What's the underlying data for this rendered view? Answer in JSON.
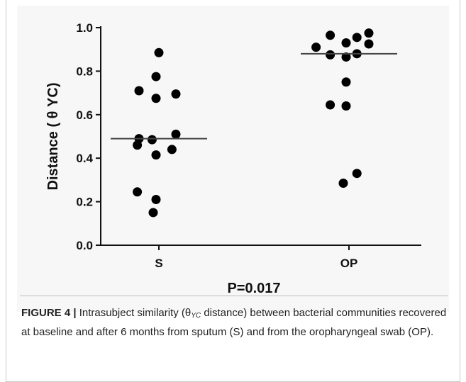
{
  "chart_data": {
    "type": "scatter",
    "categories": [
      "S",
      "OP"
    ],
    "ylabel": "Distance ( θ YC)",
    "ylim": [
      0.0,
      1.0
    ],
    "yticks": [
      0.0,
      0.2,
      0.4,
      0.6,
      0.8,
      1.0
    ],
    "ytick_labels": [
      "0.0",
      "0.2",
      "0.4",
      "0.6",
      "0.8",
      "1.0"
    ],
    "annotation": "P=0.017",
    "series": [
      {
        "category": "S",
        "median": 0.49,
        "points": [
          {
            "offset": 0.0,
            "y": 0.885
          },
          {
            "offset": -0.05,
            "y": 0.775
          },
          {
            "offset": -0.35,
            "y": 0.71
          },
          {
            "offset": -0.05,
            "y": 0.675
          },
          {
            "offset": 0.3,
            "y": 0.695
          },
          {
            "offset": -0.35,
            "y": 0.49
          },
          {
            "offset": 0.3,
            "y": 0.51
          },
          {
            "offset": -0.12,
            "y": 0.485
          },
          {
            "offset": -0.38,
            "y": 0.46
          },
          {
            "offset": 0.23,
            "y": 0.44
          },
          {
            "offset": -0.05,
            "y": 0.415
          },
          {
            "offset": -0.38,
            "y": 0.245
          },
          {
            "offset": -0.05,
            "y": 0.21
          },
          {
            "offset": -0.1,
            "y": 0.15
          }
        ]
      },
      {
        "category": "OP",
        "median": 0.88,
        "points": [
          {
            "offset": -0.33,
            "y": 0.965
          },
          {
            "offset": 0.35,
            "y": 0.975
          },
          {
            "offset": 0.14,
            "y": 0.955
          },
          {
            "offset": -0.05,
            "y": 0.93
          },
          {
            "offset": -0.58,
            "y": 0.91
          },
          {
            "offset": 0.35,
            "y": 0.925
          },
          {
            "offset": -0.33,
            "y": 0.875
          },
          {
            "offset": 0.14,
            "y": 0.88
          },
          {
            "offset": -0.05,
            "y": 0.865
          },
          {
            "offset": -0.05,
            "y": 0.75
          },
          {
            "offset": -0.33,
            "y": 0.645
          },
          {
            "offset": -0.05,
            "y": 0.64
          },
          {
            "offset": 0.14,
            "y": 0.33
          },
          {
            "offset": -0.1,
            "y": 0.285
          }
        ]
      }
    ],
    "point_color": "#000000",
    "median_color": "#444444"
  },
  "caption": {
    "label": "FIGURE 4 |",
    "text_pre": " Intrasubject similarity (θ",
    "text_sub": "YC",
    "text_post": " distance) between bacterial communities recovered at baseline and after 6 months from sputum (S) and from the oropharyngeal swab (OP)."
  }
}
